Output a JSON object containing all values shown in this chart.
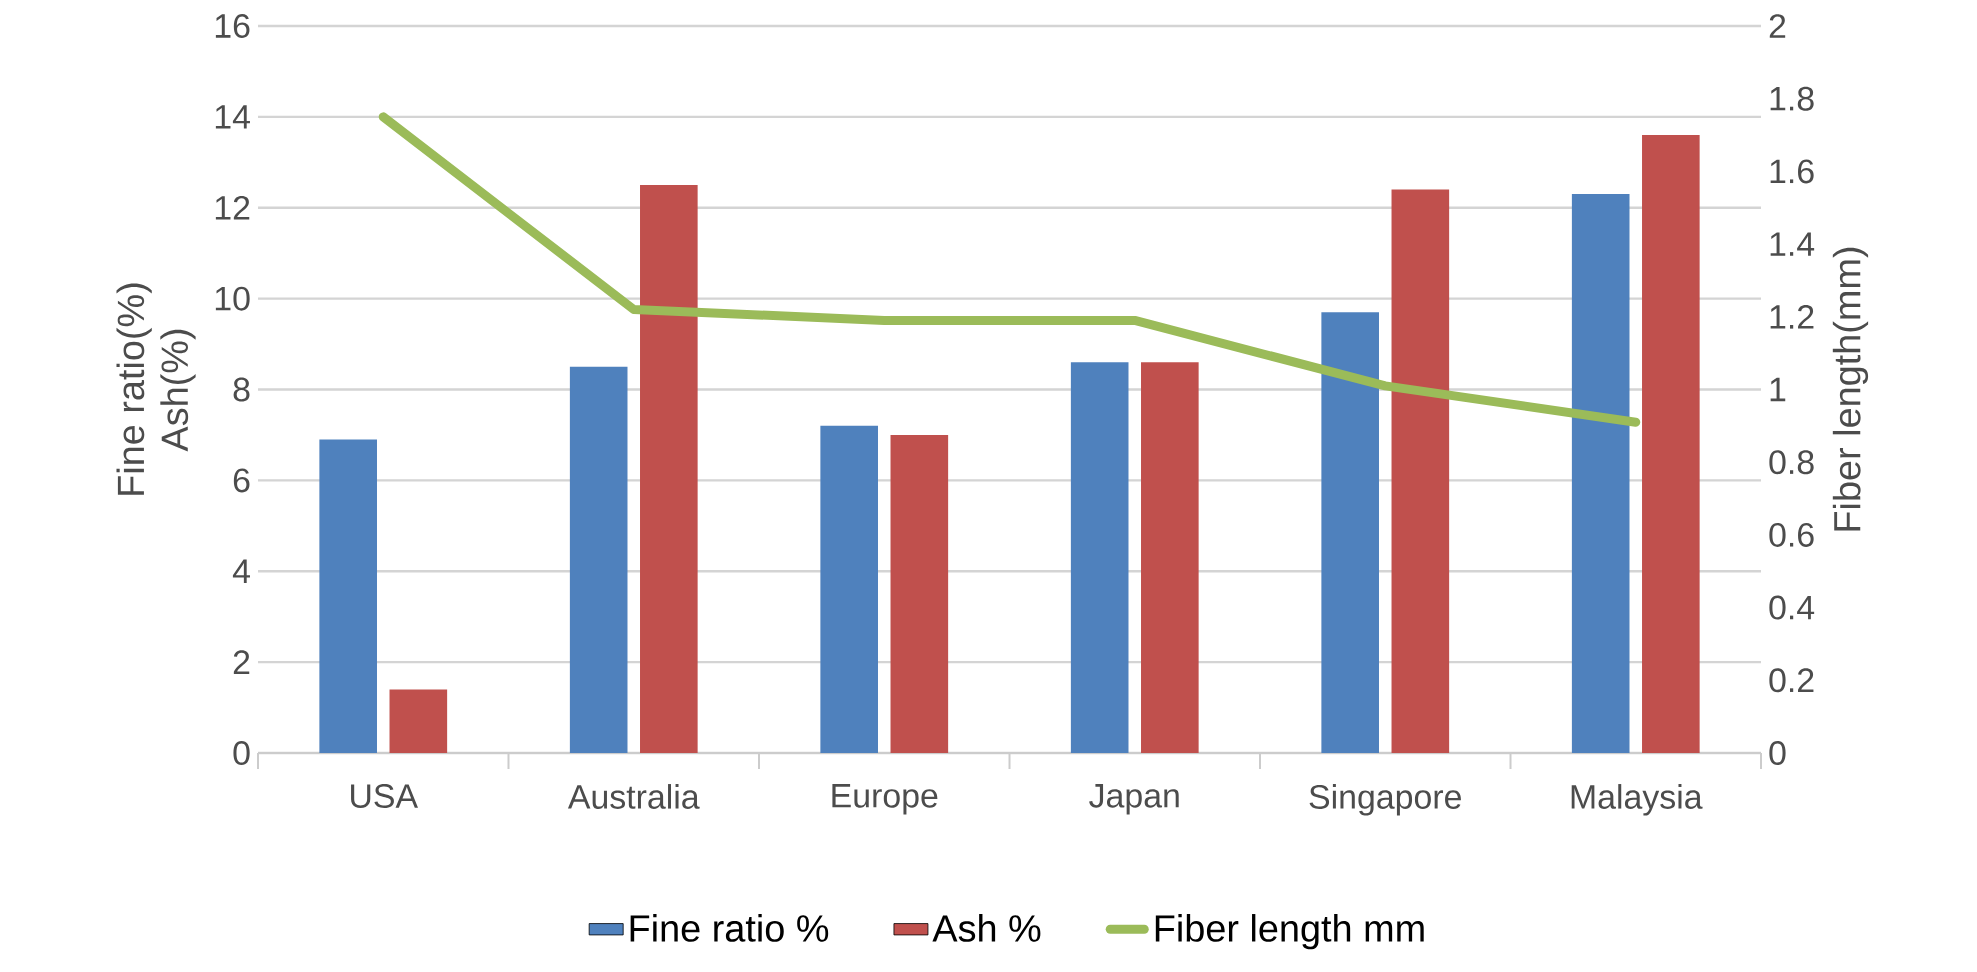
{
  "chart_data": {
    "type": "bar",
    "categories": [
      "USA",
      "Australia",
      "Europe",
      "Japan",
      "Singapore",
      "Malaysia"
    ],
    "ylabel": "Fine ratio(%)\nAsh(%)",
    "y2label": "Fiber length(mm)",
    "series": [
      {
        "name": "Fine ratio %",
        "color": "#4f81bd",
        "values": [
          6.9,
          8.5,
          7.2,
          8.6,
          9.7,
          12.3
        ]
      },
      {
        "name": "Ash %",
        "color": "#c0504d",
        "values": [
          1.4,
          12.5,
          7.0,
          8.6,
          12.4,
          13.6
        ]
      },
      {
        "name": "Fiber length mm",
        "type": "line",
        "axis": "y2",
        "color": "#9bbb59",
        "values": [
          1.75,
          1.22,
          1.19,
          1.19,
          1.01,
          0.91
        ]
      }
    ],
    "ylim": [
      0,
      16
    ],
    "yticks": [
      0,
      2,
      4,
      6,
      8,
      10,
      12,
      14,
      16
    ],
    "y2lim": [
      0,
      2
    ],
    "y2ticks": [
      0,
      0.2,
      0.4,
      0.6,
      0.8,
      1,
      1.2,
      1.4,
      1.6,
      1.8,
      2
    ],
    "grid": "y",
    "legend": "bottom",
    "marker": "none",
    "line_style": "solid"
  }
}
